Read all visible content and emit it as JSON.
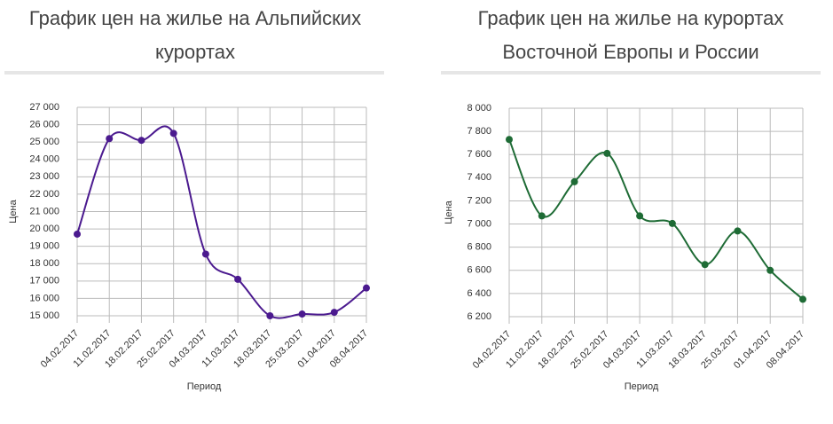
{
  "chart_data": [
    {
      "type": "line",
      "title": "График цен на жилье на Альпийских курортах",
      "xlabel": "Период",
      "ylabel": "Цена",
      "categories": [
        "04.02.2017",
        "11.02.2017",
        "18.02.2017",
        "25.02.2017",
        "04.03.2017",
        "11.03.2017",
        "18.03.2017",
        "25.03.2017",
        "01.04.2017",
        "08.04.2017"
      ],
      "values": [
        19700,
        25200,
        25100,
        25500,
        18550,
        17100,
        15000,
        15100,
        15200,
        16600
      ],
      "color": "#4b1a8f",
      "grid": true,
      "ylim": [
        15000,
        27000
      ],
      "yticks": [
        {
          "value": 15000,
          "label": "15 000"
        },
        {
          "value": 16000,
          "label": "16 000"
        },
        {
          "value": 17000,
          "label": "17 000"
        },
        {
          "value": 18000,
          "label": "18 000"
        },
        {
          "value": 19000,
          "label": "19 000"
        },
        {
          "value": 20000,
          "label": "20 000"
        },
        {
          "value": 21000,
          "label": "21 000"
        },
        {
          "value": 22000,
          "label": "22 000"
        },
        {
          "value": 23000,
          "label": "23 000"
        },
        {
          "value": 24000,
          "label": "24 000"
        },
        {
          "value": 25000,
          "label": "25 000"
        },
        {
          "value": 26000,
          "label": "26 000"
        },
        {
          "value": 27000,
          "label": "27 000"
        }
      ]
    },
    {
      "type": "line",
      "title": "График цен на жилье на курортах Восточной Европы и России",
      "xlabel": "Период",
      "ylabel": "Цена",
      "categories": [
        "04.02.2017",
        "11.02.2017",
        "18.02.2017",
        "25.02.2017",
        "04.03.2017",
        "11.03.2017",
        "18.03.2017",
        "25.03.2017",
        "01.04.2017",
        "08.04.2017"
      ],
      "values": [
        7730,
        7070,
        7365,
        7610,
        7070,
        7005,
        6650,
        6940,
        6600,
        6350
      ],
      "color": "#1e6b35",
      "grid": true,
      "ylim": [
        6200,
        8000
      ],
      "yticks": [
        {
          "value": 6200,
          "label": "6 200"
        },
        {
          "value": 6400,
          "label": "6 400"
        },
        {
          "value": 6600,
          "label": "6 600"
        },
        {
          "value": 6800,
          "label": "6 800"
        },
        {
          "value": 7000,
          "label": "7 000"
        },
        {
          "value": 7200,
          "label": "7 200"
        },
        {
          "value": 7400,
          "label": "7 400"
        },
        {
          "value": 7600,
          "label": "7 600"
        },
        {
          "value": 7800,
          "label": "7 800"
        },
        {
          "value": 8000,
          "label": "8 000"
        }
      ]
    }
  ]
}
